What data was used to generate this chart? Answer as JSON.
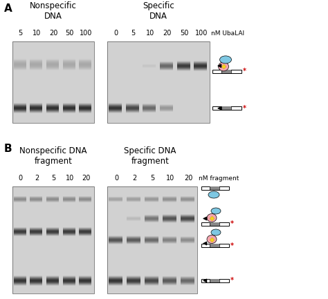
{
  "fig_width": 4.74,
  "fig_height": 4.33,
  "dpi": 100,
  "background_color": "#ffffff",
  "label_A": "A",
  "label_B": "B",
  "panel_A": {
    "title_left": "Nonspecific\nDNA",
    "title_right": "Specific\nDNA",
    "labels_left": [
      "5",
      "10",
      "20",
      "50",
      "100"
    ],
    "labels_right": [
      "0",
      "5",
      "10",
      "20",
      "50",
      "100"
    ],
    "unit_label": "nM UbaLAI"
  },
  "panel_B": {
    "title_left": "Nonspecific DNA\nfragment",
    "title_right": "Specific DNA\nfragment",
    "labels_left": [
      "0",
      "2",
      "5",
      "10",
      "20"
    ],
    "labels_right": [
      "0",
      "2",
      "5",
      "10",
      "20"
    ],
    "unit_label": "nM fragment"
  },
  "gel_bg": "#c8c8c8",
  "blue_shape": "#7ec8e3",
  "pink_shape": "#f4a5b0",
  "yellow_diamond": "#f5d020",
  "gray_dna": "#888888",
  "red_star_color": "#cc0000"
}
